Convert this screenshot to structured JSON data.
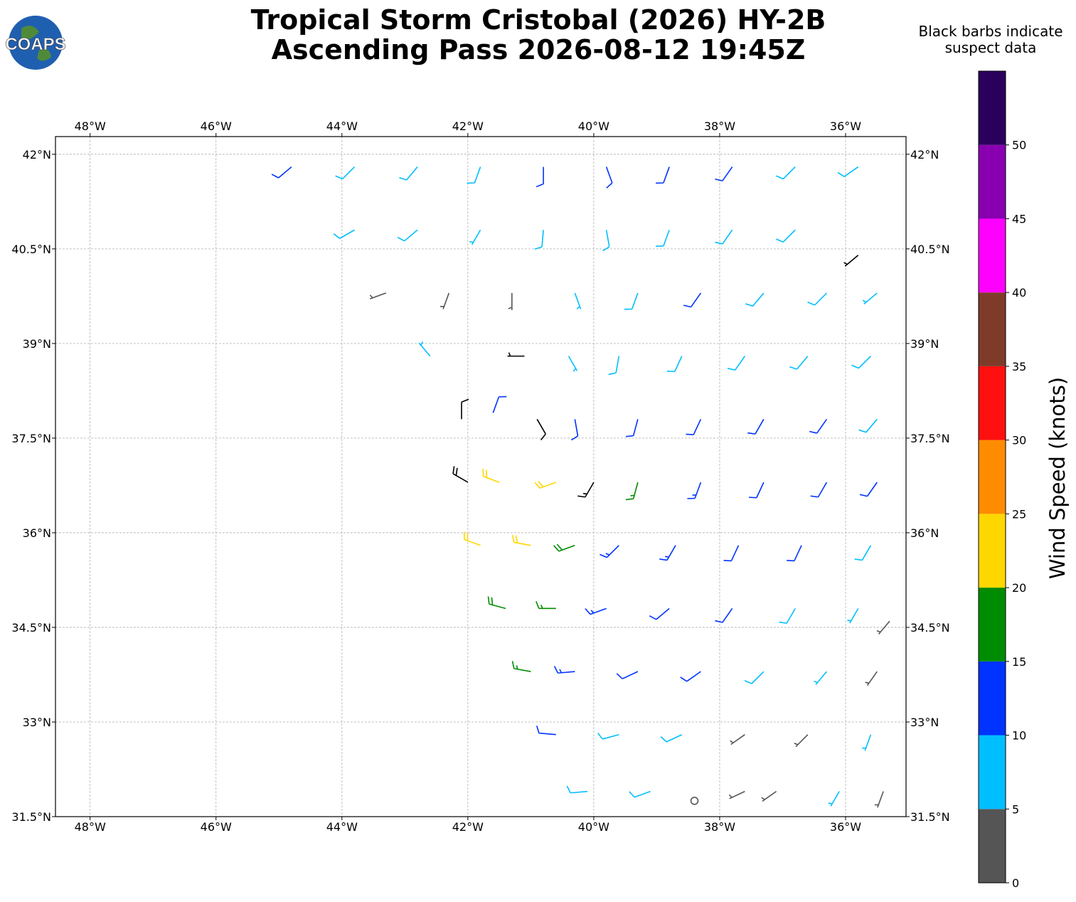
{
  "chart_data": {
    "type": "wind-barbs",
    "title": [
      "Tropical Storm Cristobal (2026) HY-2B",
      "Ascending Pass 2026-08-12 19:45Z"
    ],
    "logo": "COAPS",
    "note": [
      "Black barbs indicate",
      "suspect data"
    ],
    "xlim": [
      -48.55,
      -35.04
    ],
    "ylim": [
      31.5,
      42.28
    ],
    "grid": true,
    "xticks": [
      {
        "value": -48,
        "label": "48°W"
      },
      {
        "value": -46,
        "label": "46°W"
      },
      {
        "value": -44,
        "label": "44°W"
      },
      {
        "value": -42,
        "label": "42°W"
      },
      {
        "value": -40,
        "label": "40°W"
      },
      {
        "value": -38,
        "label": "38°W"
      },
      {
        "value": -36,
        "label": "36°W"
      }
    ],
    "yticks": [
      {
        "value": 31.5,
        "label": "31.5°N"
      },
      {
        "value": 33,
        "label": "33°N"
      },
      {
        "value": 34.5,
        "label": "34.5°N"
      },
      {
        "value": 36,
        "label": "36°N"
      },
      {
        "value": 37.5,
        "label": "37.5°N"
      },
      {
        "value": 39,
        "label": "39°N"
      },
      {
        "value": 40.5,
        "label": "40.5°N"
      },
      {
        "value": 42,
        "label": "42°N"
      }
    ],
    "suspect_color": "#000000",
    "colorbar": {
      "label": "Wind Speed (knots)",
      "bounds": [
        0,
        5,
        10,
        15,
        20,
        25,
        30,
        35,
        40,
        45,
        50,
        55
      ],
      "colors": [
        "#555555",
        "#00bfff",
        "#0033ff",
        "#008c00",
        "#ffd700",
        "#ff8c00",
        "#ff1010",
        "#7f3b2a",
        "#ff00ff",
        "#8800b0",
        "#2a005c"
      ],
      "ticks": [
        0,
        5,
        10,
        15,
        20,
        25,
        30,
        35,
        40,
        45,
        50
      ]
    },
    "barbs": [
      {
        "lon": -44.8,
        "lat": 41.8,
        "speed": 12,
        "dir": 230,
        "suspect": false
      },
      {
        "lon": -43.8,
        "lat": 41.8,
        "speed": 8,
        "dir": 225,
        "suspect": false
      },
      {
        "lon": -42.8,
        "lat": 41.8,
        "speed": 8,
        "dir": 220,
        "suspect": false
      },
      {
        "lon": -41.8,
        "lat": 41.8,
        "speed": 9,
        "dir": 200,
        "suspect": false
      },
      {
        "lon": -40.8,
        "lat": 41.8,
        "speed": 12,
        "dir": 180,
        "suspect": false
      },
      {
        "lon": -39.8,
        "lat": 41.8,
        "speed": 12,
        "dir": 160,
        "suspect": false
      },
      {
        "lon": -38.8,
        "lat": 41.8,
        "speed": 11,
        "dir": 200,
        "suspect": false
      },
      {
        "lon": -37.8,
        "lat": 41.8,
        "speed": 10,
        "dir": 215,
        "suspect": false
      },
      {
        "lon": -36.8,
        "lat": 41.8,
        "speed": 9,
        "dir": 225,
        "suspect": false
      },
      {
        "lon": -35.8,
        "lat": 41.8,
        "speed": 8,
        "dir": 235,
        "suspect": false
      },
      {
        "lon": -43.8,
        "lat": 40.8,
        "speed": 9,
        "dir": 240,
        "suspect": false
      },
      {
        "lon": -42.8,
        "lat": 40.8,
        "speed": 8,
        "dir": 230,
        "suspect": false
      },
      {
        "lon": -41.8,
        "lat": 40.8,
        "speed": 7,
        "dir": 210,
        "suspect": false
      },
      {
        "lon": -40.8,
        "lat": 40.8,
        "speed": 8,
        "dir": 185,
        "suspect": false
      },
      {
        "lon": -39.8,
        "lat": 40.8,
        "speed": 9,
        "dir": 170,
        "suspect": false
      },
      {
        "lon": -38.8,
        "lat": 40.8,
        "speed": 8,
        "dir": 200,
        "suspect": false
      },
      {
        "lon": -37.8,
        "lat": 40.8,
        "speed": 8,
        "dir": 215,
        "suspect": false
      },
      {
        "lon": -36.8,
        "lat": 40.8,
        "speed": 8,
        "dir": 225,
        "suspect": false
      },
      {
        "lon": -35.8,
        "lat": 40.4,
        "speed": 6,
        "dir": 230,
        "suspect": true
      },
      {
        "lon": -43.3,
        "lat": 39.8,
        "speed": 4,
        "dir": 250,
        "suspect": false
      },
      {
        "lon": -42.3,
        "lat": 39.8,
        "speed": 3,
        "dir": 200,
        "suspect": false
      },
      {
        "lon": -41.3,
        "lat": 39.8,
        "speed": 3,
        "dir": 180,
        "suspect": false
      },
      {
        "lon": -40.3,
        "lat": 39.8,
        "speed": 7,
        "dir": 160,
        "suspect": false
      },
      {
        "lon": -39.3,
        "lat": 39.8,
        "speed": 9,
        "dir": 200,
        "suspect": false
      },
      {
        "lon": -38.3,
        "lat": 39.8,
        "speed": 12,
        "dir": 215,
        "suspect": false
      },
      {
        "lon": -37.3,
        "lat": 39.8,
        "speed": 8,
        "dir": 220,
        "suspect": false
      },
      {
        "lon": -36.3,
        "lat": 39.8,
        "speed": 8,
        "dir": 225,
        "suspect": false
      },
      {
        "lon": -35.5,
        "lat": 39.8,
        "speed": 7,
        "dir": 230,
        "suspect": false
      },
      {
        "lon": -42.6,
        "lat": 38.8,
        "speed": 7,
        "dir": 320,
        "suspect": false
      },
      {
        "lon": -41.1,
        "lat": 38.8,
        "speed": 6,
        "dir": 270,
        "suspect": true
      },
      {
        "lon": -40.4,
        "lat": 38.8,
        "speed": 6,
        "dir": 150,
        "suspect": false
      },
      {
        "lon": -39.6,
        "lat": 38.8,
        "speed": 8,
        "dir": 190,
        "suspect": false
      },
      {
        "lon": -38.6,
        "lat": 38.8,
        "speed": 9,
        "dir": 205,
        "suspect": false
      },
      {
        "lon": -37.6,
        "lat": 38.8,
        "speed": 8,
        "dir": 215,
        "suspect": false
      },
      {
        "lon": -36.6,
        "lat": 38.8,
        "speed": 8,
        "dir": 220,
        "suspect": false
      },
      {
        "lon": -35.6,
        "lat": 38.8,
        "speed": 8,
        "dir": 225,
        "suspect": false
      },
      {
        "lon": -42.1,
        "lat": 37.8,
        "speed": 8,
        "dir": 0,
        "suspect": true
      },
      {
        "lon": -41.6,
        "lat": 37.9,
        "speed": 10,
        "dir": 20,
        "suspect": false
      },
      {
        "lon": -40.9,
        "lat": 37.8,
        "speed": 9,
        "dir": 150,
        "suspect": true
      },
      {
        "lon": -40.3,
        "lat": 37.8,
        "speed": 11,
        "dir": 170,
        "suspect": false
      },
      {
        "lon": -39.3,
        "lat": 37.8,
        "speed": 12,
        "dir": 195,
        "suspect": false
      },
      {
        "lon": -38.3,
        "lat": 37.8,
        "speed": 12,
        "dir": 205,
        "suspect": false
      },
      {
        "lon": -37.3,
        "lat": 37.8,
        "speed": 11,
        "dir": 210,
        "suspect": false
      },
      {
        "lon": -36.3,
        "lat": 37.8,
        "speed": 10,
        "dir": 215,
        "suspect": false
      },
      {
        "lon": -35.5,
        "lat": 37.8,
        "speed": 9,
        "dir": 220,
        "suspect": false
      },
      {
        "lon": -42.0,
        "lat": 36.8,
        "speed": 20,
        "dir": 300,
        "suspect": true
      },
      {
        "lon": -41.5,
        "lat": 36.8,
        "speed": 22,
        "dir": 290,
        "suspect": false
      },
      {
        "lon": -40.6,
        "lat": 36.8,
        "speed": 20,
        "dir": 250,
        "suspect": false
      },
      {
        "lon": -40.0,
        "lat": 36.8,
        "speed": 16,
        "dir": 210,
        "suspect": true
      },
      {
        "lon": -39.3,
        "lat": 36.8,
        "speed": 15,
        "dir": 195,
        "suspect": false
      },
      {
        "lon": -38.3,
        "lat": 36.8,
        "speed": 13,
        "dir": 200,
        "suspect": false
      },
      {
        "lon": -37.3,
        "lat": 36.8,
        "speed": 12,
        "dir": 205,
        "suspect": false
      },
      {
        "lon": -36.3,
        "lat": 36.8,
        "speed": 11,
        "dir": 210,
        "suspect": false
      },
      {
        "lon": -35.5,
        "lat": 36.8,
        "speed": 10,
        "dir": 215,
        "suspect": false
      },
      {
        "lon": -41.8,
        "lat": 35.8,
        "speed": 22,
        "dir": 290,
        "suspect": false
      },
      {
        "lon": -41.0,
        "lat": 35.8,
        "speed": 21,
        "dir": 280,
        "suspect": false
      },
      {
        "lon": -40.3,
        "lat": 35.8,
        "speed": 18,
        "dir": 250,
        "suspect": false
      },
      {
        "lon": -39.6,
        "lat": 35.8,
        "speed": 14,
        "dir": 225,
        "suspect": false
      },
      {
        "lon": -38.7,
        "lat": 35.8,
        "speed": 13,
        "dir": 210,
        "suspect": false
      },
      {
        "lon": -37.7,
        "lat": 35.8,
        "speed": 12,
        "dir": 205,
        "suspect": false
      },
      {
        "lon": -36.7,
        "lat": 35.8,
        "speed": 11,
        "dir": 205,
        "suspect": false
      },
      {
        "lon": -35.6,
        "lat": 35.8,
        "speed": 9,
        "dir": 210,
        "suspect": false
      },
      {
        "lon": -41.4,
        "lat": 34.8,
        "speed": 18,
        "dir": 285,
        "suspect": false
      },
      {
        "lon": -40.6,
        "lat": 34.8,
        "speed": 17,
        "dir": 270,
        "suspect": false
      },
      {
        "lon": -39.8,
        "lat": 34.8,
        "speed": 13,
        "dir": 250,
        "suspect": false
      },
      {
        "lon": -38.8,
        "lat": 34.8,
        "speed": 12,
        "dir": 230,
        "suspect": false
      },
      {
        "lon": -37.8,
        "lat": 34.8,
        "speed": 10,
        "dir": 215,
        "suspect": false
      },
      {
        "lon": -36.8,
        "lat": 34.8,
        "speed": 9,
        "dir": 210,
        "suspect": false
      },
      {
        "lon": -35.8,
        "lat": 34.8,
        "speed": 7,
        "dir": 210,
        "suspect": false
      },
      {
        "lon": -35.3,
        "lat": 34.6,
        "speed": 4,
        "dir": 220,
        "suspect": false
      },
      {
        "lon": -41.0,
        "lat": 33.8,
        "speed": 16,
        "dir": 280,
        "suspect": false
      },
      {
        "lon": -40.3,
        "lat": 33.8,
        "speed": 13,
        "dir": 265,
        "suspect": false
      },
      {
        "lon": -39.3,
        "lat": 33.8,
        "speed": 11,
        "dir": 245,
        "suspect": false
      },
      {
        "lon": -38.3,
        "lat": 33.8,
        "speed": 10,
        "dir": 235,
        "suspect": false
      },
      {
        "lon": -37.3,
        "lat": 33.8,
        "speed": 9,
        "dir": 225,
        "suspect": false
      },
      {
        "lon": -36.3,
        "lat": 33.8,
        "speed": 5,
        "dir": 220,
        "suspect": false
      },
      {
        "lon": -35.5,
        "lat": 33.8,
        "speed": 4,
        "dir": 215,
        "suspect": false
      },
      {
        "lon": -40.6,
        "lat": 32.8,
        "speed": 12,
        "dir": 275,
        "suspect": false
      },
      {
        "lon": -39.6,
        "lat": 32.8,
        "speed": 9,
        "dir": 255,
        "suspect": false
      },
      {
        "lon": -38.6,
        "lat": 32.8,
        "speed": 8,
        "dir": 245,
        "suspect": false
      },
      {
        "lon": -37.6,
        "lat": 32.8,
        "speed": 4,
        "dir": 235,
        "suspect": false
      },
      {
        "lon": -36.6,
        "lat": 32.8,
        "speed": 4,
        "dir": 225,
        "suspect": false
      },
      {
        "lon": -35.6,
        "lat": 32.8,
        "speed": 7,
        "dir": 200,
        "suspect": false
      },
      {
        "lon": -40.1,
        "lat": 31.9,
        "speed": 8,
        "dir": 265,
        "suspect": false
      },
      {
        "lon": -39.1,
        "lat": 31.9,
        "speed": 8,
        "dir": 250,
        "suspect": false
      },
      {
        "lon": -38.4,
        "lat": 31.75,
        "speed": 0,
        "dir": 0,
        "suspect": false
      },
      {
        "lon": -37.6,
        "lat": 31.9,
        "speed": 3,
        "dir": 245,
        "suspect": false
      },
      {
        "lon": -37.1,
        "lat": 31.9,
        "speed": 4,
        "dir": 235,
        "suspect": false
      },
      {
        "lon": -36.1,
        "lat": 31.9,
        "speed": 7,
        "dir": 210,
        "suspect": false
      },
      {
        "lon": -35.4,
        "lat": 31.9,
        "speed": 4,
        "dir": 200,
        "suspect": false
      }
    ]
  }
}
